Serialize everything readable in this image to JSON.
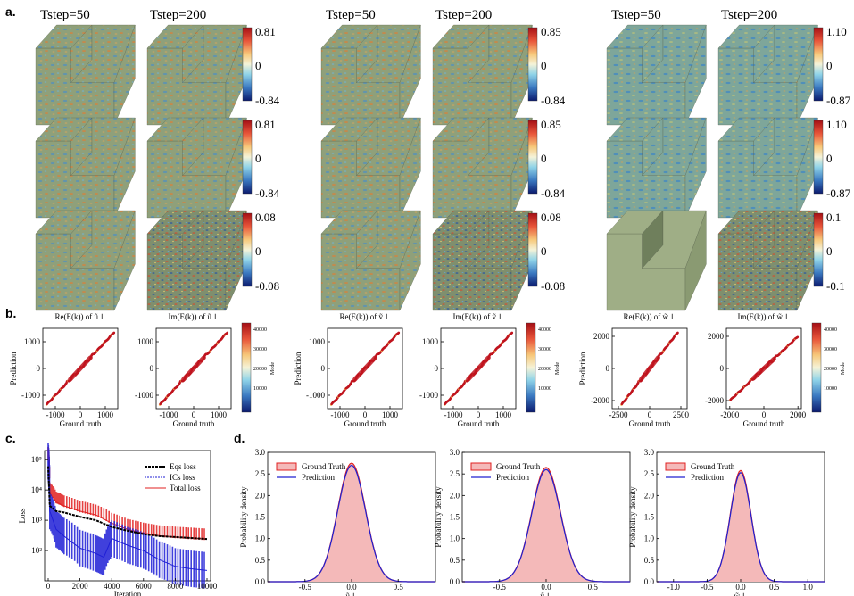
{
  "panels": {
    "a": {
      "label": "a.",
      "column_headers": [
        [
          "Tstep=50",
          "Tstep=200"
        ],
        [
          "Tstep=50",
          "Tstep=200"
        ],
        [
          "Tstep=50",
          "Tstep=200"
        ]
      ],
      "colorbars": [
        [
          [
            "0.81",
            "0",
            "-0.84"
          ],
          [
            "0.85",
            "0",
            "-0.84"
          ],
          [
            "1.10",
            "0",
            "-0.87"
          ]
        ],
        [
          [
            "0.81",
            "0",
            "-0.84"
          ],
          [
            "0.85",
            "0",
            "-0.84"
          ],
          [
            "1.10",
            "0",
            "-0.87"
          ]
        ],
        [
          [
            "0.08",
            "0",
            "-0.08"
          ],
          [
            "0.08",
            "0",
            "-0.08"
          ],
          [
            "0.1",
            "0",
            "-0.1"
          ]
        ]
      ]
    },
    "b": {
      "label": "b.",
      "titles": [
        "Re(E(k)) of ũ⊥",
        "Im(E(k)) of ũ⊥",
        "Re(E(k)) of ṽ⊥",
        "Im(E(k)) of ṽ⊥",
        "Re(E(k)) of w̃⊥",
        "Im(E(k)) of w̃⊥"
      ],
      "ylabel": "Prediction",
      "xlabel": "Ground truth",
      "colorbar_label": "Mode",
      "colorbar_ticks": [
        "40000",
        "30000",
        "20000",
        "10000"
      ],
      "chart_data": [
        {
          "type": "scatter",
          "x_ticks": [
            "-1000",
            "0",
            "1000"
          ],
          "y_ticks": [
            "1000",
            "0",
            "-1000"
          ],
          "xlim": [
            -1500,
            1500
          ],
          "ylim": [
            -1500,
            1500
          ],
          "slope": 1
        },
        {
          "type": "scatter",
          "x_ticks": [
            "-1000",
            "0",
            "1000"
          ],
          "y_ticks": [
            "1000",
            "0",
            "-1000"
          ],
          "xlim": [
            -1500,
            1500
          ],
          "ylim": [
            -1500,
            1500
          ],
          "slope": 1
        },
        {
          "type": "scatter",
          "x_ticks": [
            "-1000",
            "0",
            "1000"
          ],
          "y_ticks": [
            "1000",
            "0",
            "-1000"
          ],
          "xlim": [
            -1500,
            1500
          ],
          "ylim": [
            -1500,
            1500
          ],
          "slope": 1
        },
        {
          "type": "scatter",
          "x_ticks": [
            "-1000",
            "0",
            "1000"
          ],
          "y_ticks": [
            "1000",
            "0",
            "-1000"
          ],
          "xlim": [
            -1500,
            1500
          ],
          "ylim": [
            -1500,
            1500
          ],
          "slope": 1
        },
        {
          "type": "scatter",
          "x_ticks": [
            "-2500",
            "0",
            "2500"
          ],
          "y_ticks": [
            "2000",
            "0",
            "-2000"
          ],
          "xlim": [
            -3000,
            3000
          ],
          "ylim": [
            -2500,
            2500
          ],
          "slope": 1
        },
        {
          "type": "scatter",
          "x_ticks": [
            "-2000",
            "0",
            "2000"
          ],
          "y_ticks": [
            "2000",
            "0",
            "-2000"
          ],
          "xlim": [
            -2200,
            2200
          ],
          "ylim": [
            -2500,
            2500
          ],
          "slope": 1
        }
      ]
    },
    "c": {
      "label": "c.",
      "chart_data": {
        "type": "line",
        "xlabel": "Iteration",
        "ylabel": "Loss",
        "x_ticks": [
          "0",
          "2000",
          "4000",
          "6000",
          "8000",
          "10000"
        ],
        "y_ticks": [
          "10⁵",
          "10⁴",
          "10³",
          "10²"
        ],
        "yscale": "log",
        "ylim": [
          10,
          200000
        ],
        "xlim": [
          0,
          10000
        ],
        "series": [
          {
            "name": "Eqs loss",
            "color": "#000000",
            "x": [
              0,
              100,
              500,
              1000,
              2000,
              3000,
              4000,
              5000,
              6000,
              7000,
              8000,
              9000,
              10000
            ],
            "y": [
              60000,
              3000,
              2000,
              1800,
              1300,
              1000,
              600,
              450,
              350,
              300,
              280,
              260,
              240
            ]
          },
          {
            "name": "ICs loss",
            "color": "#1f1fd6",
            "x": [
              0,
              100,
              500,
              1000,
              2000,
              3000,
              3500,
              4000,
              5000,
              6000,
              7000,
              8000,
              9000,
              10000
            ],
            "y": [
              90000,
              2000,
              500,
              300,
              120,
              80,
              60,
              250,
              150,
              100,
              50,
              30,
              25,
              22
            ]
          },
          {
            "name": "Total loss",
            "color": "#e02020",
            "x": [
              0,
              100,
              500,
              1000,
              2000,
              3000,
              4000,
              5000,
              6000,
              7000,
              8000,
              9000,
              10000
            ],
            "y": [
              120000,
              8000,
              4000,
              3000,
              2000,
              1500,
              800,
              500,
              380,
              310,
              280,
              260,
              240
            ]
          }
        ]
      }
    },
    "d": {
      "label": "d.",
      "ylabel": "Probability density",
      "legend": [
        "Ground Truth",
        "Prediction"
      ],
      "chart_data": [
        {
          "type": "area",
          "xlabel": "ũ⊥",
          "x_ticks": [
            "-0.5",
            "0.0",
            "0.5"
          ],
          "y_ticks": [
            "0.0",
            "0.5",
            "1.0",
            "1.5",
            "2.0",
            "2.5",
            "3.0"
          ],
          "xlim": [
            -0.9,
            0.9
          ],
          "ylim": [
            0,
            3.0
          ],
          "series": [
            {
              "name": "Ground Truth",
              "peak": 2.75,
              "sigma": 0.15
            },
            {
              "name": "Prediction",
              "peak": 2.7,
              "sigma": 0.15
            }
          ]
        },
        {
          "type": "area",
          "xlabel": "ṽ⊥",
          "x_ticks": [
            "-0.5",
            "0.0",
            "0.5"
          ],
          "y_ticks": [
            "0.0",
            "0.5",
            "1.0",
            "1.5",
            "2.0",
            "2.5",
            "3.0"
          ],
          "xlim": [
            -0.9,
            0.9
          ],
          "ylim": [
            0,
            3.0
          ],
          "series": [
            {
              "name": "Ground Truth",
              "peak": 2.65,
              "sigma": 0.155
            },
            {
              "name": "Prediction",
              "peak": 2.6,
              "sigma": 0.155
            }
          ]
        },
        {
          "type": "area",
          "xlabel": "w̃⊥",
          "x_ticks": [
            "-1.0",
            "-0.5",
            "0.0",
            "0.5",
            "1.0"
          ],
          "y_ticks": [
            "0.0",
            "0.5",
            "1.0",
            "1.5",
            "2.0",
            "2.5",
            "3.0"
          ],
          "xlim": [
            -1.25,
            1.25
          ],
          "ylim": [
            0,
            3.0
          ],
          "series": [
            {
              "name": "Ground Truth",
              "peak": 2.58,
              "sigma": 0.155
            },
            {
              "name": "Prediction",
              "peak": 2.53,
              "sigma": 0.155
            }
          ]
        }
      ]
    }
  },
  "colors": {
    "cube_base": "#8a9a72",
    "cube_top": "#9fae86",
    "cube_side": "#6f7f5c",
    "gt_fill": "#f4b9b9",
    "gt_line": "#e02020",
    "pred_line": "#2020d0",
    "scatter": "#c0141e"
  }
}
